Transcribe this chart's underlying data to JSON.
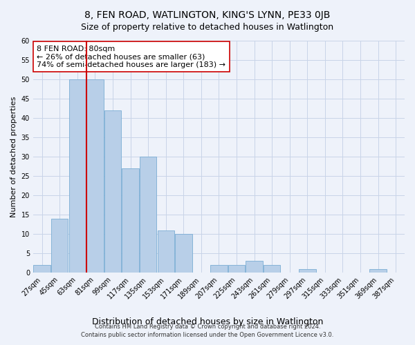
{
  "title": "8, FEN ROAD, WATLINGTON, KING'S LYNN, PE33 0JB",
  "subtitle": "Size of property relative to detached houses in Watlington",
  "xlabel": "Distribution of detached houses by size in Watlington",
  "ylabel": "Number of detached properties",
  "bar_labels": [
    "27sqm",
    "45sqm",
    "63sqm",
    "81sqm",
    "99sqm",
    "117sqm",
    "135sqm",
    "153sqm",
    "171sqm",
    "189sqm",
    "207sqm",
    "225sqm",
    "243sqm",
    "261sqm",
    "279sqm",
    "297sqm",
    "315sqm",
    "333sqm",
    "351sqm",
    "369sqm",
    "387sqm"
  ],
  "bar_values": [
    2,
    14,
    50,
    50,
    42,
    27,
    30,
    11,
    10,
    0,
    2,
    2,
    3,
    2,
    0,
    1,
    0,
    0,
    0,
    1,
    0
  ],
  "bar_color": "#b8cfe8",
  "bar_edge_color": "#7aadd4",
  "grid_color": "#c8d4e8",
  "background_color": "#eef2fa",
  "property_label": "8 FEN ROAD: 80sqm",
  "annotation_line1": "← 26% of detached houses are smaller (63)",
  "annotation_line2": "74% of semi-detached houses are larger (183) →",
  "vline_color": "#cc0000",
  "vline_bin_index": 3,
  "bin_edges": [
    27,
    45,
    63,
    81,
    99,
    117,
    135,
    153,
    171,
    189,
    207,
    225,
    243,
    261,
    279,
    297,
    315,
    333,
    351,
    369,
    387,
    405
  ],
  "ylim": [
    0,
    60
  ],
  "yticks": [
    0,
    5,
    10,
    15,
    20,
    25,
    30,
    35,
    40,
    45,
    50,
    55,
    60
  ],
  "footnote1": "Contains HM Land Registry data © Crown copyright and database right 2024.",
  "footnote2": "Contains public sector information licensed under the Open Government Licence v3.0.",
  "title_fontsize": 10,
  "subtitle_fontsize": 9,
  "annotation_fontsize": 8,
  "annotation_box_color": "#ffffff",
  "annotation_box_edge": "#cc0000",
  "ylabel_fontsize": 8,
  "xlabel_fontsize": 9,
  "tick_fontsize": 7,
  "footnote_fontsize": 6
}
